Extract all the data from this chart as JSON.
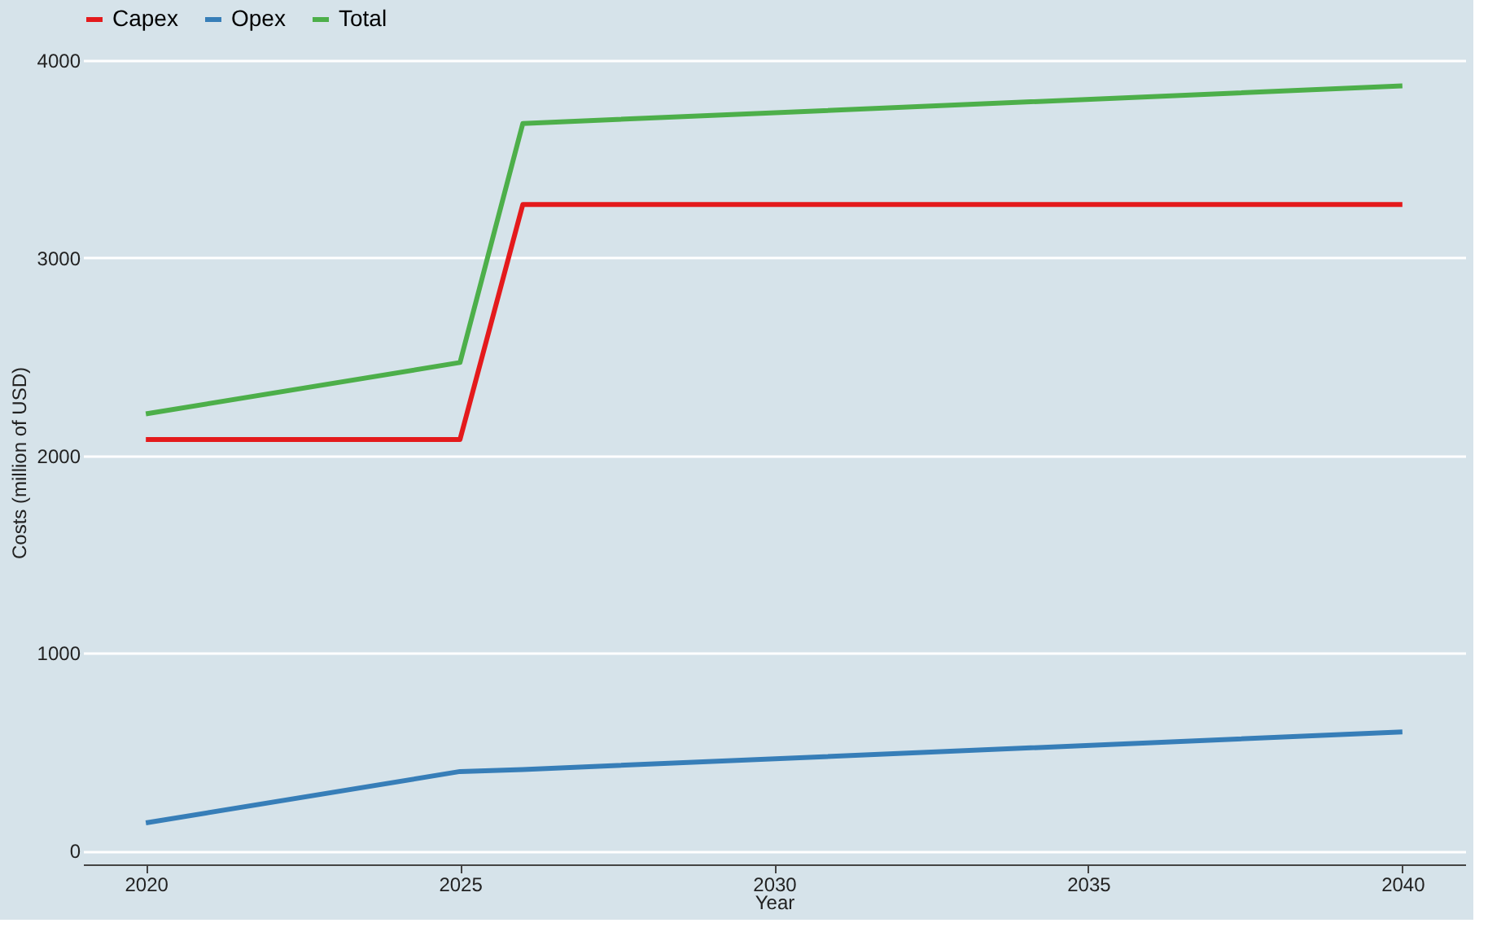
{
  "chart_data": {
    "type": "line",
    "xlabel": "Year",
    "ylabel": "Costs (million of USD)",
    "x": [
      2020,
      2025,
      2026,
      2040
    ],
    "series": [
      {
        "name": "Capex",
        "color": "#e41a1c",
        "values": [
          2080,
          2080,
          3270,
          3270
        ]
      },
      {
        "name": "Opex",
        "color": "#377eb8",
        "values": [
          140,
          400,
          410,
          600
        ]
      },
      {
        "name": "Total",
        "color": "#4daf4a",
        "values": [
          2210,
          2470,
          3680,
          3870
        ]
      }
    ],
    "xlim": [
      2019,
      2041
    ],
    "xticks": [
      2020,
      2025,
      2030,
      2035,
      2040
    ],
    "ylim": [
      -70,
      4000
    ],
    "yticks": [
      0,
      1000,
      2000,
      3000,
      4000
    ],
    "grid": "y",
    "legend": "top",
    "marker": "none",
    "line_style": "solid"
  }
}
